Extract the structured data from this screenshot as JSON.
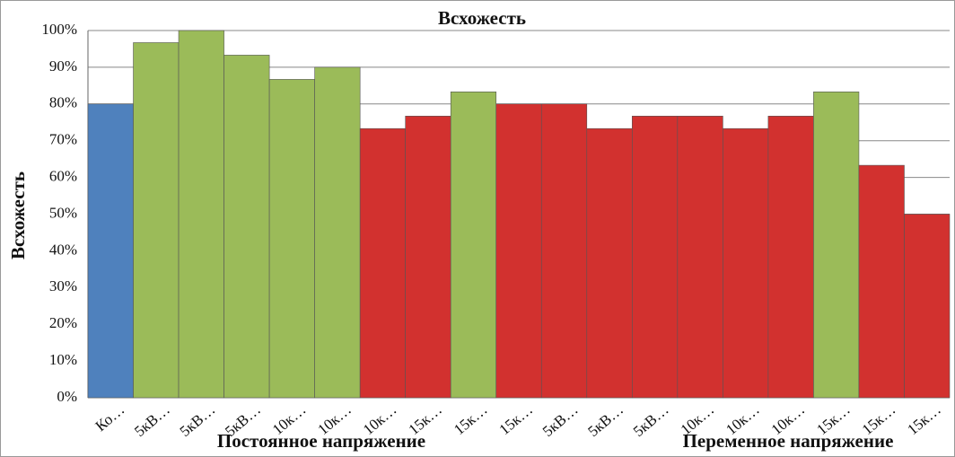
{
  "chart_data": {
    "type": "bar",
    "title": "Всхожесть",
    "y_label": "Всхожесть",
    "categories": [
      "Ко…",
      "5кВ…",
      "5кВ…",
      "5кВ…",
      "10к…",
      "10к…",
      "10к…",
      "15к…",
      "15к…",
      "15к…",
      "5кВ…",
      "5кВ…",
      "5кВ…",
      "10к…",
      "10к…",
      "10к…",
      "15к…",
      "15к…",
      "15к…"
    ],
    "values": [
      80,
      96.7,
      100,
      93.3,
      86.7,
      90,
      73.3,
      76.7,
      83.3,
      80,
      80,
      73.3,
      76.7,
      76.7,
      73.3,
      76.7,
      83.3,
      63.3,
      50
    ],
    "colors": [
      "#4f81bd",
      "#9bbb59",
      "#9bbb59",
      "#9bbb59",
      "#9bbb59",
      "#9bbb59",
      "#d2312f",
      "#d2312f",
      "#9bbb59",
      "#d2312f",
      "#d2312f",
      "#d2312f",
      "#d2312f",
      "#d2312f",
      "#d2312f",
      "#d2312f",
      "#9bbb59",
      "#d2312f",
      "#d2312f"
    ],
    "groups": [
      "Постоянное напряжение",
      "Переменное напряжение"
    ],
    "ylim": [
      0,
      100
    ],
    "yticks": [
      {
        "value": 0,
        "label": "0%"
      },
      {
        "value": 10,
        "label": "10%"
      },
      {
        "value": 20,
        "label": "20%"
      },
      {
        "value": 30,
        "label": "30%"
      },
      {
        "value": 40,
        "label": "40%"
      },
      {
        "value": 50,
        "label": "50%"
      },
      {
        "value": 60,
        "label": "60%"
      },
      {
        "value": 70,
        "label": "70%"
      },
      {
        "value": 80,
        "label": "80%"
      },
      {
        "value": 90,
        "label": "90%"
      },
      {
        "value": 100,
        "label": "100%"
      }
    ],
    "grid": true
  }
}
